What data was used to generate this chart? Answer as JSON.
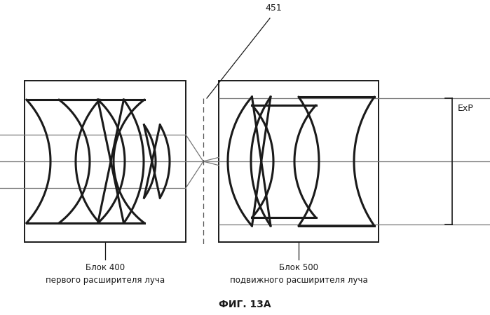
{
  "bg_color": "#ffffff",
  "line_color": "#1a1a1a",
  "gray_color": "#777777",
  "title": "ФИГ. 13А",
  "label1_line1": "Блок 400",
  "label1_line2": "первого расширителя луча",
  "label2_line1": "Блок 500",
  "label2_line2": "подвижного расширителя луча",
  "label_451": "451",
  "label_exp": "ExP",
  "figsize": [
    6.99,
    4.49
  ],
  "dpi": 100
}
